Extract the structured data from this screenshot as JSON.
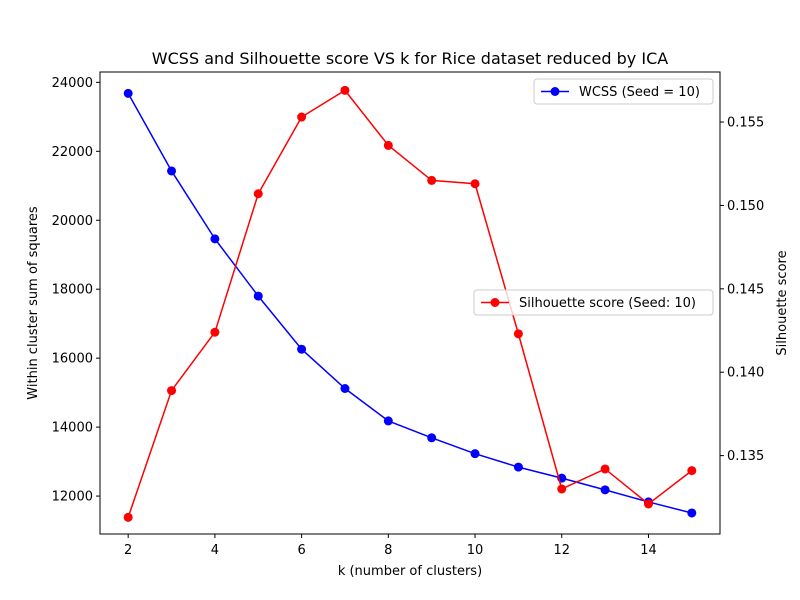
{
  "chart_data": {
    "type": "line",
    "title": "WCSS and Silhouette score VS k for Rice dataset reduced by ICA",
    "xlabel": "k (number of clusters)",
    "ylabel": "Within cluster sum of squares",
    "y2label": "Silhouette score",
    "xlim": [
      1.35,
      15.65
    ],
    "ylim": [
      10900,
      24300
    ],
    "y2lim": [
      0.1303,
      0.158
    ],
    "xticks": [
      2,
      4,
      6,
      8,
      10,
      12,
      14
    ],
    "yticks": [
      12000,
      14000,
      16000,
      18000,
      20000,
      22000,
      24000
    ],
    "y2ticks": [
      0.135,
      0.14,
      0.145,
      0.15,
      0.155
    ],
    "x": [
      2,
      3,
      4,
      5,
      6,
      7,
      8,
      9,
      10,
      11,
      12,
      13,
      14,
      15
    ],
    "series": [
      {
        "name": "WCSS (Seed = 10)",
        "axis": "left",
        "color": "#0000ff",
        "values": [
          23680,
          21430,
          19460,
          17800,
          16260,
          15120,
          14180,
          13690,
          13230,
          12840,
          12520,
          12180,
          11830,
          11510
        ]
      },
      {
        "name": "Silhouette score (Seed: 10)",
        "axis": "right",
        "color": "#ff0000",
        "values": [
          0.1313,
          0.1389,
          0.1424,
          0.1507,
          0.1553,
          0.1569,
          0.1536,
          0.1515,
          0.1513,
          0.1423,
          0.133,
          0.1342,
          0.1321,
          0.1341
        ]
      }
    ],
    "legend": [
      {
        "label": "WCSS (Seed = 10)",
        "placement": "upper-right"
      },
      {
        "label": "Silhouette score (Seed: 10)",
        "placement": "center-right"
      }
    ],
    "grid": false
  }
}
